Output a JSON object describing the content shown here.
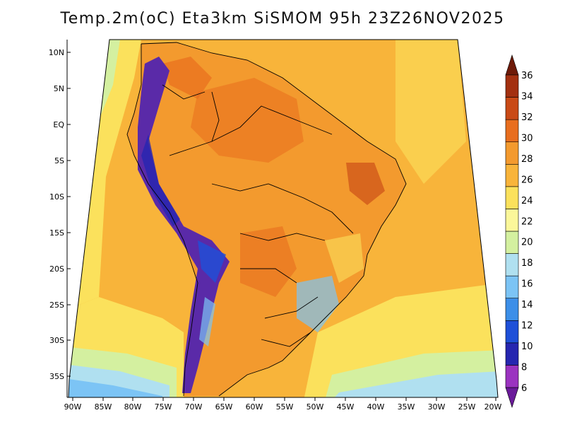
{
  "title": "Temp.2m(oC) Eta3km SiSMOM 95h 23Z26NOV2025",
  "lat_labels": [
    "10N",
    "5N",
    "EQ",
    "5S",
    "10S",
    "15S",
    "20S",
    "25S",
    "30S",
    "35S"
  ],
  "lon_labels": [
    "90W",
    "85W",
    "80W",
    "75W",
    "70W",
    "65W",
    "60W",
    "55W",
    "50W",
    "45W",
    "40W",
    "35W",
    "30W",
    "25W",
    "20W"
  ],
  "colorbar": {
    "labels": [
      "6",
      "8",
      "10",
      "12",
      "14",
      "16",
      "18",
      "20",
      "22",
      "24",
      "26",
      "28",
      "30",
      "32",
      "34",
      "36"
    ],
    "colors": [
      "#6a1a9a",
      "#9b33c0",
      "#2626b0",
      "#1e50d8",
      "#3c8fe8",
      "#7cc4f5",
      "#b0e0f0",
      "#d4f0a0",
      "#fbf79a",
      "#fbe15c",
      "#f8b43a",
      "#f39a2e",
      "#e86e1e",
      "#c94a16",
      "#a33010",
      "#6e1a08"
    ]
  },
  "colors": {
    "ocean_warm": "#f8b43a",
    "ocean_mild": "#fbe15c",
    "ocean_cool": "#d4f0a0",
    "land_hot": "#e86e1e",
    "andes": "#4a1a8a"
  }
}
